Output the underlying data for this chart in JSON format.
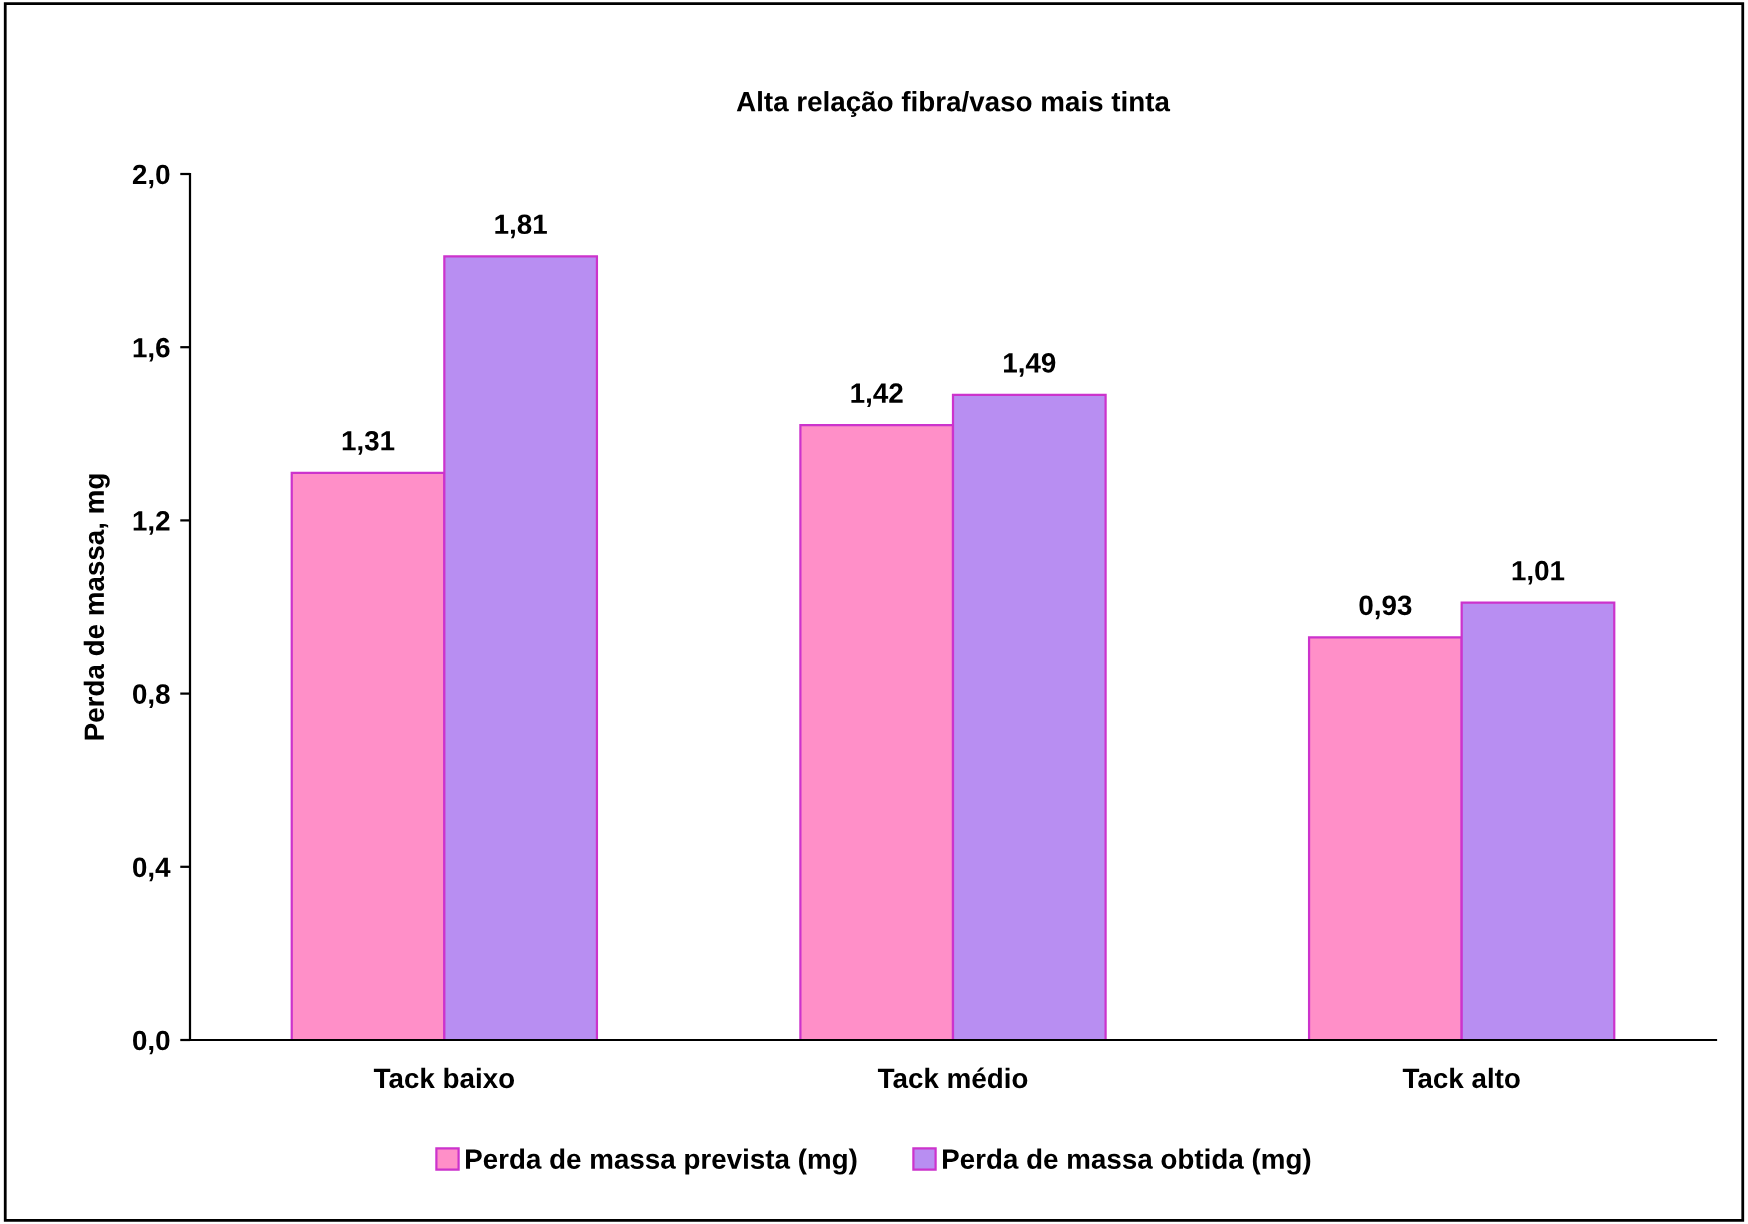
{
  "chart_data": {
    "type": "bar",
    "title": "Alta relação fibra/vaso mais tinta",
    "ylabel": "Perda de massa, mg",
    "categories": [
      "Tack baixo",
      "Tack médio",
      "Tack alto"
    ],
    "series": [
      {
        "name": "Perda de massa prevista (mg)",
        "color": "#ff8fc8",
        "values": [
          1.31,
          1.42,
          0.93
        ],
        "value_labels": [
          "1,31",
          "1,42",
          "0,93"
        ]
      },
      {
        "name": "Perda de massa obtida (mg)",
        "color": "#b88ef2",
        "values": [
          1.81,
          1.49,
          1.01
        ],
        "value_labels": [
          "1,81",
          "1,49",
          "1,01"
        ]
      }
    ],
    "ylim": [
      0,
      2.0
    ],
    "yticks": [
      {
        "value": 0,
        "label": "0,0"
      },
      {
        "value": 0.4,
        "label": "0,4"
      },
      {
        "value": 0.8,
        "label": "0,8"
      },
      {
        "value": 1.2,
        "label": "1,2"
      },
      {
        "value": 1.6,
        "label": "1,6"
      },
      {
        "value": 2.0,
        "label": "2,0"
      }
    ],
    "grid": false,
    "legend": "bottom"
  }
}
